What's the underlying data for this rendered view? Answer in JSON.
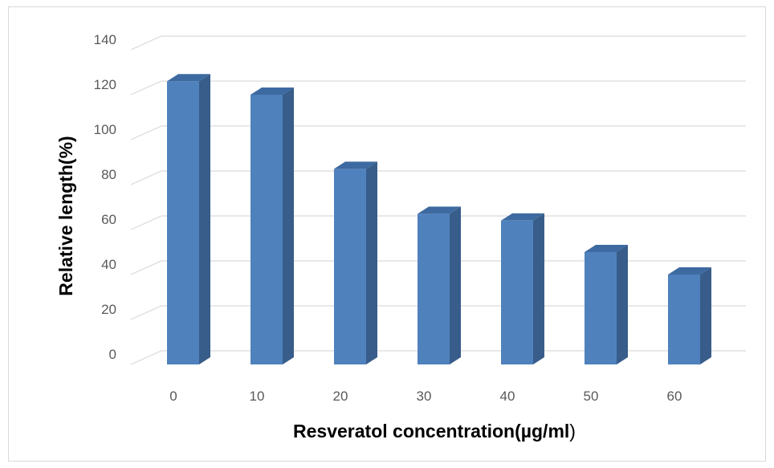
{
  "chart_data": {
    "type": "bar",
    "style": "3d-column",
    "title": "",
    "xlabel": "Resveratol concentration(µg/ml",
    "xlabel_suffix": ")",
    "ylabel": "Relative length(%)",
    "categories": [
      "0",
      "10",
      "20",
      "30",
      "40",
      "50",
      "60"
    ],
    "series": [
      {
        "values": [
          126,
          120,
          87,
          67,
          64,
          50,
          40
        ]
      }
    ],
    "ylim": [
      0,
      140
    ],
    "yticks": [
      0,
      20,
      40,
      60,
      80,
      100,
      120,
      140
    ],
    "grid": true,
    "legend": "none",
    "colors": {
      "bar_front": "#4f81bd",
      "bar_side": "#385d8a",
      "bar_top": "#3d6aa0",
      "grid": "#d9d9d9",
      "tick_text": "#595959"
    }
  }
}
